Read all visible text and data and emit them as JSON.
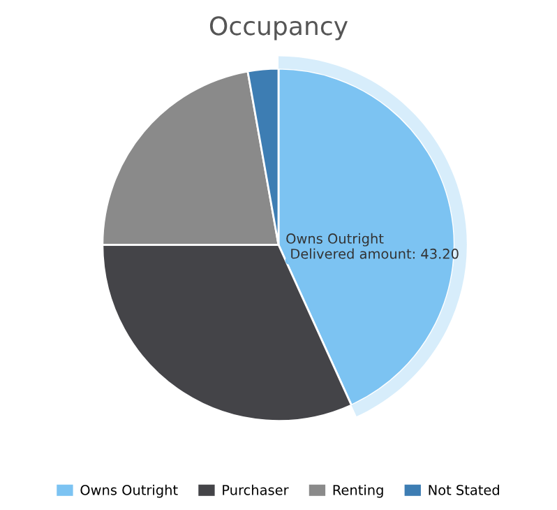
{
  "chart_data": {
    "type": "pie",
    "title": "Occupancy",
    "categories": [
      "Owns Outright",
      "Purchaser",
      "Renting",
      "Not Stated"
    ],
    "values": [
      43.2,
      31.8,
      22.2,
      2.8
    ],
    "colors": [
      "#7cc3f2",
      "#444448",
      "#8a8a8a",
      "#3d7db3"
    ],
    "legend": "bottom",
    "annotations": [
      "Owns Outright",
      "Delivered amount: 43.20"
    ]
  }
}
